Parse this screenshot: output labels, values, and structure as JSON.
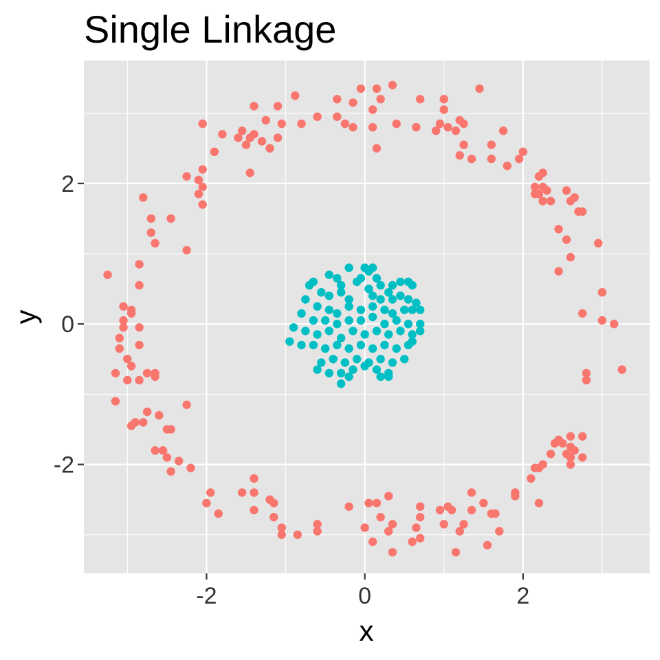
{
  "chart_data": {
    "type": "scatter",
    "title": "Single Linkage",
    "xlabel": "x",
    "ylabel": "y",
    "xlim": [
      -3.55,
      3.6
    ],
    "ylim": [
      -3.55,
      3.75
    ],
    "x_ticks": [
      -2,
      0,
      2
    ],
    "x_tick_labels": [
      "-2",
      "0",
      "2"
    ],
    "y_ticks": [
      -2,
      0,
      2
    ],
    "y_tick_labels": [
      "-2",
      "0",
      "2"
    ],
    "grid": true,
    "legend": "none",
    "series": [
      {
        "color": "#F8766D",
        "points": [
          [
            -0.35,
            3.2
          ],
          [
            -0.05,
            3.35
          ],
          [
            0.15,
            3.35
          ],
          [
            0.35,
            3.4
          ],
          [
            1.45,
            3.35
          ],
          [
            0.7,
            3.2
          ],
          [
            1.0,
            3.2
          ],
          [
            -0.88,
            3.25
          ],
          [
            -1.1,
            3.1
          ],
          [
            -1.4,
            3.1
          ],
          [
            -0.15,
            3.15
          ],
          [
            0.1,
            3.05
          ],
          [
            0.2,
            3.2
          ],
          [
            -0.6,
            2.95
          ],
          [
            -0.8,
            2.85
          ],
          [
            -0.35,
            2.95
          ],
          [
            -0.25,
            2.85
          ],
          [
            -0.15,
            2.8
          ],
          [
            0.1,
            2.8
          ],
          [
            0.4,
            2.85
          ],
          [
            0.65,
            2.8
          ],
          [
            0.95,
            2.85
          ],
          [
            1.05,
            2.8
          ],
          [
            1.15,
            2.75
          ],
          [
            1.2,
            2.9
          ],
          [
            1.25,
            2.85
          ],
          [
            1.0,
            3.05
          ],
          [
            0.9,
            2.75
          ],
          [
            1.75,
            2.75
          ],
          [
            1.6,
            2.55
          ],
          [
            1.95,
            2.35
          ],
          [
            1.8,
            2.25
          ],
          [
            2.0,
            2.45
          ],
          [
            1.25,
            2.55
          ],
          [
            1.2,
            2.4
          ],
          [
            1.35,
            2.35
          ],
          [
            1.6,
            2.35
          ],
          [
            -1.05,
            2.85
          ],
          [
            -1.25,
            2.9
          ],
          [
            -1.55,
            2.75
          ],
          [
            -1.4,
            2.7
          ],
          [
            -1.45,
            2.65
          ],
          [
            -1.3,
            2.6
          ],
          [
            -1.5,
            2.55
          ],
          [
            -1.6,
            2.65
          ],
          [
            -1.8,
            2.7
          ],
          [
            -1.2,
            2.5
          ],
          [
            -1.1,
            2.65
          ],
          [
            0.15,
            2.5
          ],
          [
            -2.05,
            2.85
          ],
          [
            -1.9,
            2.45
          ],
          [
            -2.05,
            2.2
          ],
          [
            -1.45,
            2.15
          ],
          [
            -2.25,
            2.1
          ],
          [
            -2.1,
            2.05
          ],
          [
            -2.05,
            1.95
          ],
          [
            -2.1,
            1.85
          ],
          [
            -2.05,
            1.7
          ],
          [
            -2.8,
            1.8
          ],
          [
            -2.7,
            1.5
          ],
          [
            -2.45,
            1.5
          ],
          [
            -2.7,
            1.3
          ],
          [
            -2.65,
            1.15
          ],
          [
            -2.25,
            1.05
          ],
          [
            -2.85,
            0.85
          ],
          [
            -2.85,
            0.55
          ],
          [
            -3.25,
            0.7
          ],
          [
            -3.05,
            0.25
          ],
          [
            -3.05,
            0.05
          ],
          [
            -3.05,
            -0.05
          ],
          [
            -2.95,
            0.2
          ],
          [
            -2.95,
            0.15
          ],
          [
            -2.85,
            -0.05
          ],
          [
            -3.1,
            -0.2
          ],
          [
            -3.1,
            -0.35
          ],
          [
            -2.85,
            -0.3
          ],
          [
            -3.0,
            -0.5
          ],
          [
            -2.95,
            -0.6
          ],
          [
            -3.15,
            -0.7
          ],
          [
            -3.0,
            -0.8
          ],
          [
            -2.85,
            -0.8
          ],
          [
            -2.75,
            -0.7
          ],
          [
            -2.65,
            -0.7
          ],
          [
            -2.65,
            -0.75
          ],
          [
            -3.15,
            -1.1
          ],
          [
            -2.75,
            -1.25
          ],
          [
            -2.9,
            -1.4
          ],
          [
            -2.8,
            -1.4
          ],
          [
            -2.95,
            -1.45
          ],
          [
            -2.6,
            -1.3
          ],
          [
            -2.25,
            -1.15
          ],
          [
            -2.5,
            -1.5
          ],
          [
            -2.45,
            -1.5
          ],
          [
            -2.55,
            -1.8
          ],
          [
            -2.65,
            -1.8
          ],
          [
            -2.5,
            -1.9
          ],
          [
            -2.35,
            -1.95
          ],
          [
            -2.45,
            -2.1
          ],
          [
            -2.2,
            -2.05
          ],
          [
            -1.95,
            -2.4
          ],
          [
            -2.0,
            -2.55
          ],
          [
            -1.85,
            -2.7
          ],
          [
            -1.55,
            -2.4
          ],
          [
            -1.4,
            -2.2
          ],
          [
            -1.4,
            -2.4
          ],
          [
            -1.4,
            -2.65
          ],
          [
            -1.2,
            -2.5
          ],
          [
            -1.15,
            -2.55
          ],
          [
            -1.15,
            -2.75
          ],
          [
            -1.05,
            -2.9
          ],
          [
            -1.05,
            -3.0
          ],
          [
            -0.85,
            -3.0
          ],
          [
            -0.6,
            -2.85
          ],
          [
            -0.6,
            -2.95
          ],
          [
            -0.2,
            -2.6
          ],
          [
            0.0,
            -2.9
          ],
          [
            0.05,
            -2.55
          ],
          [
            0.15,
            -2.55
          ],
          [
            0.2,
            -2.75
          ],
          [
            0.3,
            -2.45
          ],
          [
            0.35,
            -2.85
          ],
          [
            0.3,
            -2.95
          ],
          [
            0.35,
            -3.25
          ],
          [
            0.1,
            -3.1
          ],
          [
            0.65,
            -2.9
          ],
          [
            0.7,
            -2.6
          ],
          [
            0.7,
            -2.75
          ],
          [
            0.7,
            -3.05
          ],
          [
            0.6,
            -3.1
          ],
          [
            0.95,
            -2.65
          ],
          [
            1.05,
            -2.6
          ],
          [
            1.1,
            -2.65
          ],
          [
            1.0,
            -2.85
          ],
          [
            1.15,
            -3.25
          ],
          [
            1.25,
            -2.85
          ],
          [
            1.2,
            -2.95
          ],
          [
            1.35,
            -2.4
          ],
          [
            1.35,
            -2.65
          ],
          [
            1.5,
            -2.55
          ],
          [
            1.6,
            -2.7
          ],
          [
            1.65,
            -2.7
          ],
          [
            1.55,
            -3.15
          ],
          [
            1.7,
            -2.95
          ],
          [
            1.9,
            -2.4
          ],
          [
            1.9,
            -2.45
          ],
          [
            2.1,
            -2.2
          ],
          [
            2.2,
            -2.05
          ],
          [
            2.25,
            -2.0
          ],
          [
            2.15,
            -2.05
          ],
          [
            2.2,
            -2.55
          ],
          [
            2.35,
            -1.85
          ],
          [
            2.45,
            -1.65
          ],
          [
            2.4,
            -1.7
          ],
          [
            2.5,
            -1.7
          ],
          [
            2.55,
            -1.85
          ],
          [
            2.6,
            -1.6
          ],
          [
            2.6,
            -1.75
          ],
          [
            2.65,
            -1.8
          ],
          [
            2.6,
            -1.9
          ],
          [
            2.6,
            -2.0
          ],
          [
            2.75,
            -1.6
          ],
          [
            2.75,
            -1.9
          ],
          [
            2.8,
            -0.8
          ],
          [
            2.8,
            -0.7
          ],
          [
            3.25,
            -0.65
          ],
          [
            3.15,
            0.0
          ],
          [
            3.0,
            0.05
          ],
          [
            3.0,
            0.45
          ],
          [
            2.75,
            0.15
          ],
          [
            2.95,
            1.15
          ],
          [
            2.6,
            0.95
          ],
          [
            2.45,
            0.75
          ],
          [
            2.55,
            1.2
          ],
          [
            2.45,
            1.35
          ],
          [
            2.7,
            1.6
          ],
          [
            2.75,
            1.6
          ],
          [
            2.65,
            1.8
          ],
          [
            2.6,
            1.75
          ],
          [
            2.55,
            1.9
          ],
          [
            2.3,
            1.9
          ],
          [
            2.25,
            1.95
          ],
          [
            2.2,
            1.85
          ],
          [
            2.15,
            1.85
          ],
          [
            2.2,
            2.1
          ],
          [
            2.25,
            2.15
          ],
          [
            2.15,
            1.95
          ],
          [
            2.35,
            1.75
          ],
          [
            2.25,
            1.75
          ]
        ]
      },
      {
        "color": "#00BFC4",
        "points": [
          [
            -0.2,
            0.8
          ],
          [
            0.0,
            0.8
          ],
          [
            0.05,
            0.75
          ],
          [
            0.1,
            0.8
          ],
          [
            -0.05,
            0.65
          ],
          [
            0.15,
            0.65
          ],
          [
            -0.35,
            0.65
          ],
          [
            -0.45,
            0.7
          ],
          [
            -0.3,
            0.55
          ],
          [
            -0.1,
            0.6
          ],
          [
            0.05,
            0.5
          ],
          [
            0.2,
            0.55
          ],
          [
            0.3,
            0.45
          ],
          [
            0.35,
            0.55
          ],
          [
            0.45,
            0.6
          ],
          [
            0.55,
            0.6
          ],
          [
            0.6,
            0.55
          ],
          [
            -0.65,
            0.6
          ],
          [
            -0.7,
            0.55
          ],
          [
            -0.55,
            0.45
          ],
          [
            -0.45,
            0.4
          ],
          [
            -0.3,
            0.45
          ],
          [
            -0.2,
            0.35
          ],
          [
            0.1,
            0.4
          ],
          [
            0.2,
            0.35
          ],
          [
            0.35,
            0.35
          ],
          [
            0.45,
            0.4
          ],
          [
            0.55,
            0.35
          ],
          [
            0.65,
            0.3
          ],
          [
            -0.75,
            0.35
          ],
          [
            -0.6,
            0.25
          ],
          [
            -0.45,
            0.2
          ],
          [
            -0.35,
            0.15
          ],
          [
            -0.2,
            0.25
          ],
          [
            -0.05,
            0.2
          ],
          [
            0.1,
            0.25
          ],
          [
            0.25,
            0.2
          ],
          [
            0.35,
            0.15
          ],
          [
            0.5,
            0.2
          ],
          [
            0.6,
            0.2
          ],
          [
            0.7,
            0.2
          ],
          [
            -0.8,
            0.15
          ],
          [
            -0.65,
            0.05
          ],
          [
            -0.5,
            0.05
          ],
          [
            -0.35,
            0.0
          ],
          [
            -0.2,
            0.05
          ],
          [
            -0.05,
            0.05
          ],
          [
            0.1,
            0.1
          ],
          [
            0.25,
            0.0
          ],
          [
            0.4,
            0.05
          ],
          [
            0.55,
            0.0
          ],
          [
            0.7,
            0.0
          ],
          [
            -0.9,
            -0.05
          ],
          [
            -0.75,
            -0.1
          ],
          [
            -0.6,
            -0.15
          ],
          [
            -0.45,
            -0.1
          ],
          [
            -0.3,
            -0.2
          ],
          [
            -0.15,
            -0.1
          ],
          [
            0.0,
            -0.15
          ],
          [
            0.15,
            -0.1
          ],
          [
            0.3,
            -0.15
          ],
          [
            0.45,
            -0.1
          ],
          [
            0.6,
            -0.15
          ],
          [
            0.7,
            -0.1
          ],
          [
            -0.95,
            -0.25
          ],
          [
            -0.8,
            -0.3
          ],
          [
            -0.65,
            -0.3
          ],
          [
            -0.5,
            -0.35
          ],
          [
            -0.35,
            -0.3
          ],
          [
            -0.2,
            -0.35
          ],
          [
            -0.05,
            -0.3
          ],
          [
            0.1,
            -0.35
          ],
          [
            0.25,
            -0.3
          ],
          [
            0.4,
            -0.35
          ],
          [
            0.55,
            -0.3
          ],
          [
            0.6,
            -0.25
          ],
          [
            -0.55,
            -0.55
          ],
          [
            -0.4,
            -0.5
          ],
          [
            -0.25,
            -0.55
          ],
          [
            -0.1,
            -0.5
          ],
          [
            0.05,
            -0.55
          ],
          [
            0.2,
            -0.5
          ],
          [
            0.35,
            -0.55
          ],
          [
            0.5,
            -0.5
          ],
          [
            -0.6,
            -0.65
          ],
          [
            -0.45,
            -0.7
          ],
          [
            -0.3,
            -0.7
          ],
          [
            -0.15,
            -0.65
          ],
          [
            0.0,
            -0.6
          ],
          [
            0.15,
            -0.65
          ],
          [
            0.3,
            -0.7
          ],
          [
            -0.3,
            -0.85
          ],
          [
            -0.2,
            -0.75
          ],
          [
            0.2,
            -0.75
          ],
          [
            0.3,
            -0.75
          ]
        ]
      }
    ]
  }
}
